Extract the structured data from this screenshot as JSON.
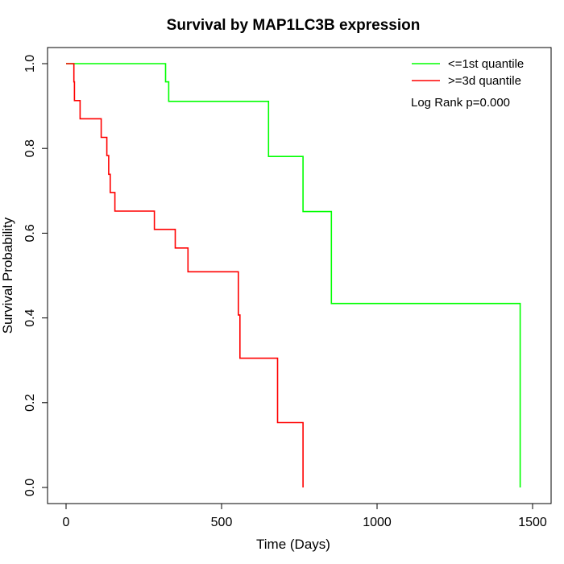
{
  "chart_data": {
    "type": "line",
    "subtype": "kaplan-meier-step",
    "title": "Survival by MAP1LC3B expression",
    "xlabel": "Time (Days)",
    "ylabel": "Survival Probability",
    "xlim": [
      0,
      1500
    ],
    "ylim": [
      0,
      1
    ],
    "x_ticks": [
      0,
      500,
      1000,
      1500
    ],
    "y_ticks": [
      "0.0",
      "0.2",
      "0.4",
      "0.6",
      "0.8",
      "1.0"
    ],
    "grid": false,
    "legend_position": "top-right",
    "annotation": "Log Rank p=0.000",
    "series": [
      {
        "name": "<=1st quantile",
        "color": "#00ff00",
        "points": [
          [
            0,
            1.0
          ],
          [
            320,
            1.0
          ],
          [
            320,
            0.957
          ],
          [
            330,
            0.957
          ],
          [
            330,
            0.911
          ],
          [
            651,
            0.911
          ],
          [
            651,
            0.781
          ],
          [
            762,
            0.781
          ],
          [
            762,
            0.651
          ],
          [
            853,
            0.651
          ],
          [
            853,
            0.434
          ],
          [
            1460,
            0.434
          ],
          [
            1460,
            0.0
          ]
        ]
      },
      {
        "name": ">=3d quantile",
        "color": "#ff0000",
        "points": [
          [
            0,
            1.0
          ],
          [
            25,
            1.0
          ],
          [
            25,
            0.957
          ],
          [
            27,
            0.957
          ],
          [
            27,
            0.913
          ],
          [
            45,
            0.913
          ],
          [
            45,
            0.87
          ],
          [
            113,
            0.87
          ],
          [
            113,
            0.826
          ],
          [
            131,
            0.826
          ],
          [
            131,
            0.783
          ],
          [
            137,
            0.783
          ],
          [
            137,
            0.739
          ],
          [
            142,
            0.739
          ],
          [
            142,
            0.696
          ],
          [
            157,
            0.696
          ],
          [
            157,
            0.652
          ],
          [
            284,
            0.652
          ],
          [
            284,
            0.609
          ],
          [
            351,
            0.609
          ],
          [
            351,
            0.565
          ],
          [
            392,
            0.565
          ],
          [
            392,
            0.509
          ],
          [
            554,
            0.509
          ],
          [
            554,
            0.407
          ],
          [
            559,
            0.407
          ],
          [
            559,
            0.305
          ],
          [
            680,
            0.305
          ],
          [
            680,
            0.153
          ],
          [
            762,
            0.153
          ],
          [
            762,
            0.0
          ]
        ]
      }
    ]
  }
}
